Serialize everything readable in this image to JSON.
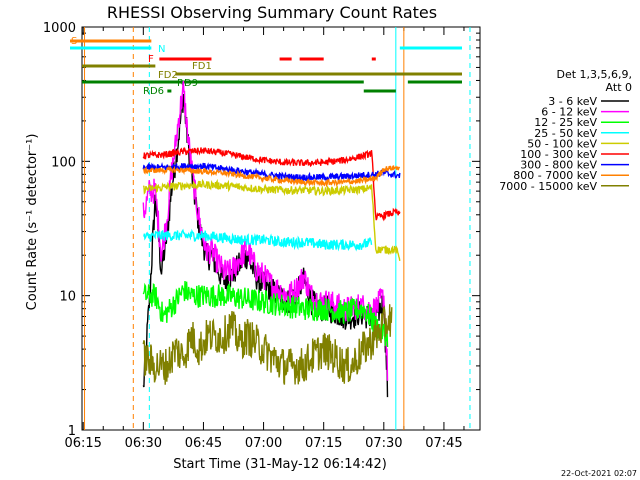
{
  "chart_data": {
    "type": "line",
    "title": "RHESSI Observing Summary Count Rates",
    "xlabel": "Start Time (31-May-12 06:14:42)",
    "ylabel": "Count Rate (s⁻¹ detector⁻¹)",
    "yscale": "log",
    "xlim": [
      "06:14:42",
      "07:54:00"
    ],
    "ylim": [
      1,
      1000
    ],
    "x_ticks": [
      "06:15",
      "06:30",
      "06:45",
      "07:00",
      "07:15",
      "07:30",
      "07:45"
    ],
    "y_ticks": [
      "1",
      "10",
      "100",
      "1000"
    ],
    "timestamp": "22-Oct-2021 02:07",
    "legend": {
      "placement": "right",
      "header": [
        "Det 1,3,5,6,9,",
        "Att 0"
      ]
    },
    "series": [
      {
        "name": "3 - 6 keV",
        "color": "#000000",
        "x": [
          "06:30",
          "06:31:30",
          "06:33",
          "06:34:30",
          "06:36",
          "06:37",
          "06:38",
          "06:39",
          "06:40",
          "06:41",
          "06:42",
          "06:43",
          "06:44",
          "06:45",
          "06:46",
          "06:47",
          "06:48",
          "06:50",
          "06:52",
          "06:54",
          "06:56",
          "06:58",
          "07:00",
          "07:02",
          "07:04",
          "07:06",
          "07:08",
          "07:10",
          "07:12",
          "07:14",
          "07:16",
          "07:18",
          "07:20",
          "07:22",
          "07:24",
          "07:26",
          "07:28",
          "07:30",
          "07:31"
        ],
        "y": [
          2,
          9,
          55,
          15,
          30,
          60,
          100,
          170,
          310,
          150,
          80,
          50,
          32,
          24,
          19,
          20,
          17,
          13,
          14,
          17,
          20,
          14,
          12,
          11,
          10,
          9,
          10,
          13,
          9,
          8,
          8,
          7.5,
          7,
          7,
          7.5,
          7,
          7,
          9,
          1.8
        ]
      },
      {
        "name": "6 - 12 keV",
        "color": "#ff00ff",
        "x": [
          "06:30",
          "06:31:30",
          "06:33",
          "06:34:30",
          "06:36",
          "06:37",
          "06:38",
          "06:39",
          "06:40",
          "06:41",
          "06:42",
          "06:43",
          "06:44",
          "06:45",
          "06:46",
          "06:47",
          "06:48",
          "06:50",
          "06:52",
          "06:54",
          "06:56",
          "06:58",
          "07:00",
          "07:02",
          "07:04",
          "07:06",
          "07:08",
          "07:10",
          "07:12",
          "07:14",
          "07:16",
          "07:18",
          "07:20",
          "07:22",
          "07:24",
          "07:26",
          "07:28",
          "07:30",
          "07:31"
        ],
        "y": [
          40,
          60,
          60,
          20,
          40,
          80,
          130,
          230,
          340,
          170,
          90,
          55,
          36,
          26,
          21,
          22,
          19,
          15,
          15,
          19,
          22,
          16,
          14,
          12,
          11,
          10,
          11,
          14,
          10,
          9,
          9,
          8.5,
          8,
          8,
          8.5,
          8,
          8,
          10,
          2.5
        ]
      },
      {
        "name": "12 - 25 keV",
        "color": "#00ff00",
        "x": [
          "06:30",
          "06:33",
          "06:35",
          "06:38",
          "06:40",
          "06:42",
          "06:45",
          "06:50",
          "06:55",
          "07:00",
          "07:05",
          "07:10",
          "07:15",
          "07:20",
          "07:25",
          "07:28",
          "07:31"
        ],
        "y": [
          10,
          10,
          7,
          9,
          11,
          10,
          10,
          10,
          9.5,
          9,
          8.5,
          8,
          8,
          7.5,
          8,
          6,
          5
        ]
      },
      {
        "name": "25 - 50 keV",
        "color": "#00ffff",
        "x": [
          "06:30",
          "06:33",
          "06:38",
          "06:40",
          "06:42",
          "06:45",
          "06:50",
          "06:55",
          "07:00",
          "07:05",
          "07:10",
          "07:15",
          "07:20",
          "07:25",
          "07:27"
        ],
        "y": [
          27,
          28,
          28,
          28,
          28,
          28,
          27,
          26,
          26,
          25,
          25,
          24,
          24,
          24,
          25
        ]
      },
      {
        "name": "50 - 100 keV",
        "color": "#cccc00",
        "x": [
          "06:30",
          "06:35",
          "06:40",
          "06:45",
          "06:50",
          "06:55",
          "07:00",
          "07:05",
          "07:10",
          "07:15",
          "07:20",
          "07:25",
          "07:27",
          "07:28",
          "07:33",
          "07:34"
        ],
        "y": [
          62,
          64,
          66,
          67,
          66,
          64,
          62,
          61,
          61,
          60,
          61,
          62,
          64,
          22,
          22,
          19
        ]
      },
      {
        "name": "100 - 300 keV",
        "color": "#ff0000",
        "x": [
          "06:30",
          "06:35",
          "06:40",
          "06:45",
          "06:50",
          "06:55",
          "07:00",
          "07:05",
          "07:10",
          "07:15",
          "07:20",
          "07:25",
          "07:27",
          "07:28",
          "07:33",
          "07:34"
        ],
        "y": [
          110,
          112,
          118,
          120,
          115,
          108,
          102,
          98,
          97,
          98,
          102,
          110,
          115,
          38,
          42,
          40
        ]
      },
      {
        "name": "300 - 800 keV",
        "color": "#0000ff",
        "x": [
          "06:30",
          "06:35",
          "06:40",
          "06:45",
          "06:50",
          "06:55",
          "07:00",
          "07:05",
          "07:10",
          "07:15",
          "07:20",
          "07:25",
          "07:28",
          "07:30",
          "07:34"
        ],
        "y": [
          90,
          90,
          92,
          92,
          88,
          84,
          80,
          77,
          76,
          76,
          77,
          79,
          80,
          82,
          78
        ]
      },
      {
        "name": "800 - 7000 keV",
        "color": "#ff8000",
        "x": [
          "06:30",
          "06:35",
          "06:40",
          "06:45",
          "06:50",
          "06:55",
          "07:00",
          "07:05",
          "07:10",
          "07:15",
          "07:20",
          "07:25",
          "07:28",
          "07:30",
          "07:34"
        ],
        "y": [
          85,
          86,
          86,
          84,
          82,
          78,
          75,
          72,
          70,
          69,
          70,
          72,
          75,
          88,
          90
        ]
      },
      {
        "name": "7000 - 15000 keV",
        "color": "#808000",
        "x": [
          "06:30",
          "06:33",
          "06:36",
          "06:38",
          "06:40",
          "06:42",
          "06:44",
          "06:46",
          "06:48",
          "06:50",
          "06:52",
          "06:54",
          "06:56",
          "06:58",
          "07:00",
          "07:02",
          "07:05",
          "07:08",
          "07:10",
          "07:12",
          "07:15",
          "07:18",
          "07:20",
          "07:22",
          "07:25",
          "07:28",
          "07:30",
          "07:32"
        ],
        "y": [
          3.5,
          3,
          3,
          4,
          3.5,
          5,
          4,
          5,
          5,
          5,
          6,
          4.5,
          5,
          4.5,
          4,
          3.5,
          3,
          3,
          3,
          3.5,
          4,
          3.5,
          3,
          3,
          4,
          5,
          6,
          7
        ]
      }
    ],
    "state_bars": [
      {
        "label": "S",
        "color": "#ff8000",
        "segments": [
          [
            "06:15",
            "06:32"
          ]
        ]
      },
      {
        "label": "N",
        "color": "#00ffff",
        "segments": [
          [
            "06:15",
            "06:32"
          ],
          [
            "07:34",
            "07:54"
          ]
        ]
      },
      {
        "label": "F",
        "color": "#ff0000",
        "segments": [
          [
            "06:34",
            "06:47"
          ],
          [
            "07:04",
            "07:07"
          ],
          [
            "07:09",
            "07:15"
          ],
          [
            "07:27",
            "07:28"
          ]
        ]
      },
      {
        "label": "FD1",
        "color": "#808000",
        "segments": [
          [
            "06:15",
            "06:33"
          ]
        ]
      },
      {
        "label": "FD2",
        "color": "#808000",
        "segments": [
          [
            "06:38",
            "07:54"
          ]
        ]
      },
      {
        "label": "RD9",
        "color": "#008000",
        "segments": [
          [
            "06:15",
            "07:25"
          ],
          [
            "07:36",
            "07:54"
          ]
        ]
      },
      {
        "label": "RD6",
        "color": "#008000",
        "segments": [
          [
            "06:36",
            "06:37"
          ],
          [
            "07:25",
            "07:33"
          ]
        ]
      }
    ],
    "vlines": [
      {
        "t": "06:15:20",
        "color": "#ff8000",
        "style": "solid"
      },
      {
        "t": "06:27:30",
        "color": "#ff8000",
        "style": "dashed"
      },
      {
        "t": "06:31:30",
        "color": "#00ffff",
        "style": "dashed"
      },
      {
        "t": "07:33:00",
        "color": "#00ffff",
        "style": "solid"
      },
      {
        "t": "07:35:00",
        "color": "#ff8000",
        "style": "solid"
      },
      {
        "t": "07:51:30",
        "color": "#00ffff",
        "style": "dashed"
      }
    ]
  }
}
